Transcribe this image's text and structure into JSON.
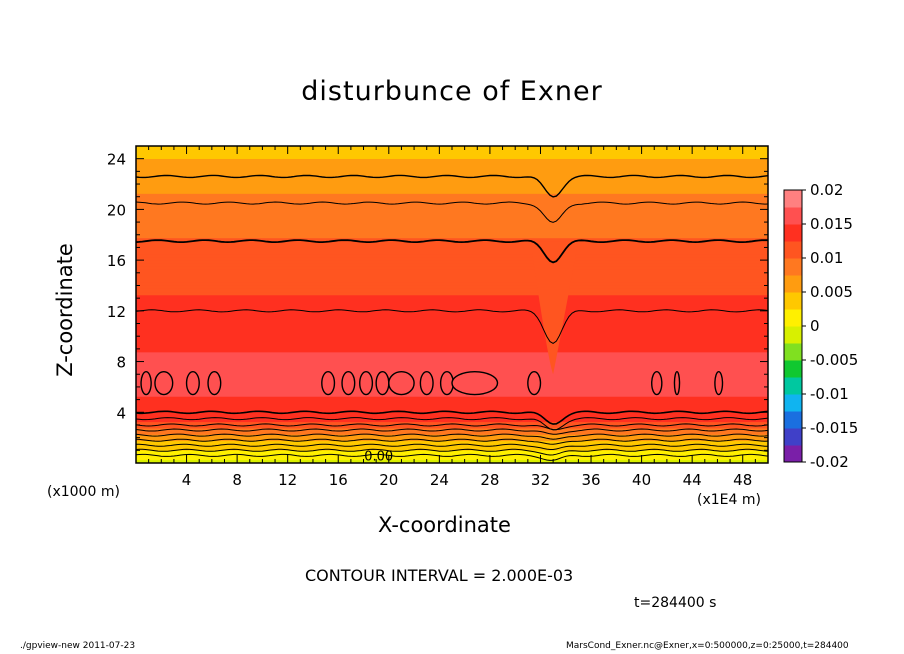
{
  "chart_data": {
    "type": "contour",
    "title": "disturbunce of Exner",
    "xlabel": "X-coordinate",
    "ylabel": "Z-coordinate",
    "x_unit_left": "(x1000 m)",
    "x_unit_right": "(x1E4 m)",
    "xlim": [
      0,
      50
    ],
    "ylim": [
      0,
      25
    ],
    "xticks": [
      "4",
      "8",
      "12",
      "16",
      "20",
      "24",
      "28",
      "32",
      "36",
      "40",
      "44",
      "48"
    ],
    "yticks": [
      "4",
      "8",
      "12",
      "16",
      "20",
      "24"
    ],
    "contour_interval": "CONTOUR INTERVAL = 2.000E-03",
    "time": "t=284400 s",
    "inline_label": "0.00",
    "colorbar": {
      "labels": [
        "0.02",
        "0.015",
        "0.01",
        "0.005",
        "0",
        "-0.005",
        "-0.01",
        "-0.015",
        "-0.02"
      ],
      "range": [
        -0.02,
        0.02
      ],
      "colors": [
        "#7a1fa8",
        "#4040c8",
        "#1a6fe0",
        "#10b4f0",
        "#00c8a0",
        "#10c830",
        "#80e020",
        "#d8f000",
        "#fff000",
        "#ffc800",
        "#ff9c10",
        "#ff7820",
        "#ff5520",
        "#ff3020",
        "#ff5050",
        "#ff8080"
      ]
    },
    "profile": [
      {
        "z": 0.0,
        "value": -0.001
      },
      {
        "z": 1.5,
        "value": 0.004
      },
      {
        "z": 3.5,
        "value": 0.0135
      },
      {
        "z": 6.0,
        "value": 0.0155
      },
      {
        "z": 11.5,
        "value": 0.0145
      },
      {
        "z": 14.0,
        "value": 0.0118
      },
      {
        "z": 17.5,
        "value": 0.0102
      },
      {
        "z": 20.5,
        "value": 0.0082
      },
      {
        "z": 23.0,
        "value": 0.006
      },
      {
        "z": 25.0,
        "value": 0.004
      }
    ]
  },
  "footer": {
    "left": "./gpview-new   2011-07-23",
    "right": "MarsCond_Exner.nc@Exner,x=0:500000,z=0:25000,t=284400"
  }
}
